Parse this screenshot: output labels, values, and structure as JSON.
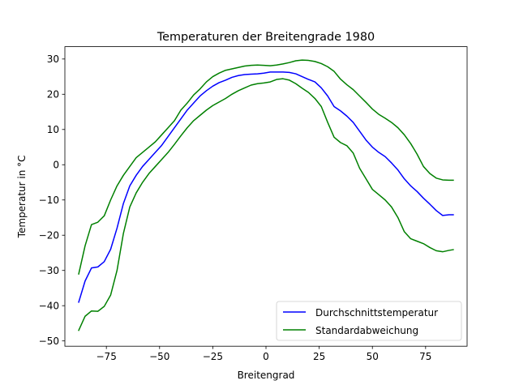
{
  "chart_data": {
    "type": "line",
    "title": "Temperaturen der Breitengrade 1980",
    "xlabel": "Breitengrad",
    "ylabel": "Temperatur in °C",
    "xlim": [
      -94.5,
      94.5
    ],
    "ylim": [
      -51.5,
      33.5
    ],
    "xticks": [
      -75,
      -50,
      -25,
      0,
      25,
      50,
      75
    ],
    "xtick_labels": [
      "−75",
      "−50",
      "−25",
      "0",
      "25",
      "50",
      "75"
    ],
    "yticks": [
      30,
      20,
      10,
      0,
      -10,
      -20,
      -30,
      -40,
      -50
    ],
    "ytick_labels": [
      "30",
      "20",
      "10",
      "0",
      "−10",
      "−20",
      "−30",
      "−40",
      "−50"
    ],
    "grid": false,
    "legend_position": "lower-right",
    "legend": [
      "Durchschnittstemperatur",
      "Standardabweichung"
    ],
    "x": [
      -88,
      -85,
      -82,
      -79,
      -76,
      -73,
      -70,
      -67,
      -64,
      -61,
      -58,
      -55,
      -52,
      -49,
      -46,
      -43,
      -40,
      -37,
      -34,
      -31,
      -28,
      -25,
      -22,
      -19,
      -16,
      -13,
      -10,
      -7,
      -4,
      -1,
      2,
      5,
      8,
      11,
      14,
      17,
      20,
      23,
      26,
      29,
      32,
      35,
      38,
      41,
      44,
      47,
      50,
      53,
      56,
      59,
      62,
      65,
      68,
      71,
      74,
      77,
      80,
      83,
      86,
      88
    ],
    "series": [
      {
        "name": "Durchschnittstemperatur",
        "color": "#0000ff",
        "values": [
          -39,
          -33,
          -29.3,
          -29,
          -27.5,
          -24,
          -18,
          -11,
          -6,
          -3,
          -0.5,
          1.5,
          3.5,
          5.5,
          8,
          10.5,
          13,
          15.5,
          17.5,
          19.5,
          21,
          22.3,
          23.3,
          24,
          24.8,
          25.3,
          25.6,
          25.7,
          25.8,
          26,
          26.3,
          26.3,
          26.3,
          26.2,
          25.8,
          25,
          24.2,
          23.5,
          21.8,
          19.5,
          16.5,
          15.3,
          13.8,
          12,
          9.5,
          7,
          5,
          3.5,
          2.3,
          0.5,
          -1.5,
          -4,
          -6,
          -7.6,
          -9.5,
          -11.2,
          -13,
          -14.4,
          -14.2,
          -14.2
        ]
      },
      {
        "name": "Standardabweichung",
        "color": "#008000",
        "role": "upper",
        "values": [
          -31,
          -23,
          -17,
          -16.3,
          -14.5,
          -10,
          -6,
          -3,
          -0.5,
          2,
          3.5,
          5,
          6.5,
          8.5,
          10.5,
          12.5,
          15.5,
          17.5,
          19.8,
          21.5,
          23.5,
          25,
          26,
          26.8,
          27.2,
          27.6,
          28,
          28.2,
          28.3,
          28.2,
          28.1,
          28.3,
          28.6,
          29,
          29.5,
          29.7,
          29.6,
          29.3,
          28.7,
          27.8,
          26.5,
          24.3,
          22.7,
          21.3,
          19.5,
          17.7,
          15.8,
          14.3,
          13.2,
          12,
          10.5,
          8.5,
          6,
          3,
          -0.5,
          -2.5,
          -3.8,
          -4.3,
          -4.4,
          -4.4
        ]
      },
      {
        "name": "Standardabweichung",
        "color": "#008000",
        "role": "lower",
        "values": [
          -47,
          -43,
          -41.5,
          -41.6,
          -40.2,
          -37,
          -30,
          -19.5,
          -12,
          -8,
          -5,
          -2.5,
          -0.5,
          1.5,
          3.5,
          5.8,
          8.2,
          10.5,
          12.5,
          14,
          15.5,
          16.8,
          17.8,
          18.8,
          20,
          21,
          21.8,
          22.6,
          23,
          23.2,
          23.5,
          24.2,
          24.4,
          24,
          23,
          21.7,
          20.5,
          18.8,
          16.5,
          12,
          7.8,
          6.3,
          5.4,
          3.3,
          -1,
          -4,
          -7,
          -8.5,
          -10,
          -12,
          -15,
          -19,
          -21,
          -21.7,
          -22.4,
          -23.5,
          -24.4,
          -24.7,
          -24.3,
          -24.1
        ]
      }
    ]
  }
}
